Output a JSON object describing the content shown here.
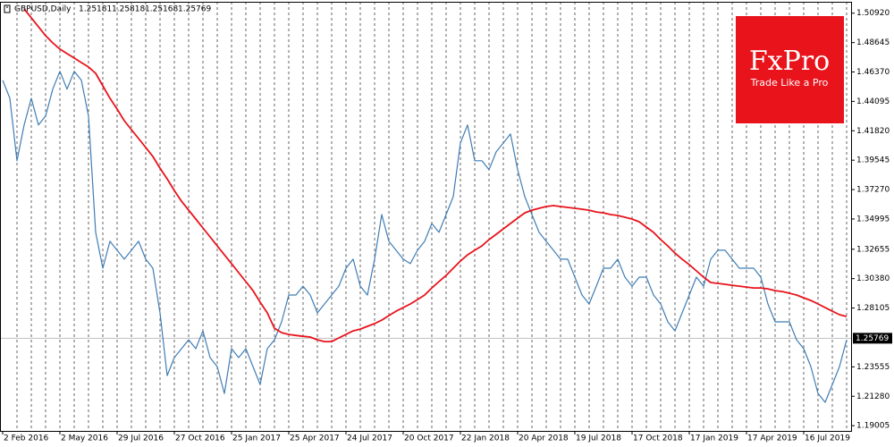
{
  "chart_data": {
    "type": "line",
    "symbol": "GBPUSD,Daily",
    "ohlc": [
      1.25181,
      1.25818,
      1.25168,
      1.25769
    ],
    "logo": {
      "brand": "FxPro",
      "tagline": "Trade Like a Pro"
    },
    "categories": [
      "2 Feb 2016",
      null,
      null,
      null,
      null,
      null,
      null,
      null,
      "2 May 2016",
      null,
      null,
      null,
      null,
      null,
      null,
      null,
      "29 Jul 2016",
      null,
      null,
      null,
      null,
      null,
      null,
      null,
      "27 Oct 2016",
      null,
      null,
      null,
      null,
      null,
      null,
      null,
      "25 Jan 2017",
      null,
      null,
      null,
      null,
      null,
      null,
      null,
      "25 Apr 2017",
      null,
      null,
      null,
      null,
      null,
      null,
      null,
      "24 Jul 2017",
      null,
      null,
      null,
      null,
      null,
      null,
      null,
      "20 Oct 2017",
      null,
      null,
      null,
      null,
      null,
      null,
      null,
      "22 Jan 2018",
      null,
      null,
      null,
      null,
      null,
      null,
      null,
      "20 Apr 2018",
      null,
      null,
      null,
      null,
      null,
      null,
      null,
      "19 Jul 2018",
      null,
      null,
      null,
      null,
      null,
      null,
      null,
      "17 Oct 2018",
      null,
      null,
      null,
      null,
      null,
      null,
      null,
      "17 Jan 2019",
      null,
      null,
      null,
      null,
      null,
      null,
      null,
      "17 Apr 2019",
      null,
      null,
      null,
      null,
      null,
      null,
      null,
      "16 Jul 2019",
      null,
      null,
      null,
      null,
      null,
      null
    ],
    "series": [
      {
        "color": "#3f7db5",
        "values": [
          1.4573,
          1.4434,
          1.395,
          1.4227,
          1.4434,
          1.4227,
          1.4296,
          1.4504,
          1.4642,
          1.4504,
          1.4642,
          1.4573,
          1.4296,
          1.3396,
          1.3119,
          1.3327,
          1.3258,
          1.3189,
          1.3258,
          1.3327,
          1.3189,
          1.3119,
          1.2773,
          1.2288,
          1.2427,
          1.2496,
          1.2565,
          1.2496,
          1.2634,
          1.2427,
          1.2357,
          1.215,
          1.2496,
          1.2427,
          1.2496,
          1.2357,
          1.2219,
          1.2496,
          1.2565,
          1.2704,
          1.2911,
          1.2911,
          1.298,
          1.2911,
          1.2773,
          1.2842,
          1.2911,
          1.298,
          1.3119,
          1.3189,
          1.298,
          1.2911,
          1.3189,
          1.3534,
          1.3327,
          1.3258,
          1.3189,
          1.3154,
          1.3258,
          1.3327,
          1.3465,
          1.3396,
          1.3534,
          1.3673,
          1.4088,
          1.4227,
          1.395,
          1.395,
          1.3881,
          1.4019,
          1.4088,
          1.4157,
          1.3881,
          1.3673,
          1.3534,
          1.3396,
          1.3327,
          1.3258,
          1.3189,
          1.3189,
          1.305,
          1.2911,
          1.2842,
          1.298,
          1.3119,
          1.3119,
          1.3189,
          1.305,
          1.298,
          1.305,
          1.305,
          1.2911,
          1.2842,
          1.2704,
          1.2634,
          1.2773,
          1.2911,
          1.305,
          1.298,
          1.3189,
          1.3258,
          1.3258,
          1.3189,
          1.3119,
          1.3119,
          1.3119,
          1.305,
          1.2842,
          1.2704,
          1.2704,
          1.2704,
          1.2565,
          1.2496,
          1.2357,
          1.215,
          1.2081,
          1.2219,
          1.2357,
          1.2565
        ]
      },
      {
        "color": "#e8131b",
        "values": [
          null,
          null,
          null,
          1.5125,
          1.5056,
          1.4987,
          1.4918,
          1.4862,
          1.4814,
          1.4779,
          1.4745,
          1.471,
          1.4676,
          1.4627,
          1.453,
          1.4434,
          1.435,
          1.426,
          1.4191,
          1.4122,
          1.4053,
          1.3983,
          1.3893,
          1.381,
          1.372,
          1.3637,
          1.3568,
          1.3499,
          1.343,
          1.3361,
          1.3291,
          1.3222,
          1.3154,
          1.3084,
          1.3015,
          1.2945,
          1.2856,
          1.2773,
          1.2655,
          1.262,
          1.2606,
          1.2599,
          1.2592,
          1.2586,
          1.2565,
          1.2551,
          1.2551,
          1.2579,
          1.2606,
          1.2634,
          1.2648,
          1.2669,
          1.269,
          1.2717,
          1.2752,
          1.2786,
          1.2814,
          1.2842,
          1.2876,
          1.2911,
          1.2966,
          1.3015,
          1.3063,
          1.3119,
          1.3174,
          1.3222,
          1.3258,
          1.3291,
          1.334,
          1.3381,
          1.3423,
          1.3465,
          1.3506,
          1.3547,
          1.3568,
          1.3582,
          1.3596,
          1.3603,
          1.3596,
          1.3589,
          1.3582,
          1.3575,
          1.3568,
          1.3554,
          1.3547,
          1.3534,
          1.3527,
          1.3513,
          1.3499,
          1.3478,
          1.3437,
          1.3396,
          1.334,
          1.3291,
          1.3236,
          1.3189,
          1.3146,
          1.3098,
          1.305,
          1.3008,
          1.3001,
          1.2994,
          1.2987,
          1.298,
          1.2973,
          1.2966,
          1.2966,
          1.2959,
          1.2945,
          1.2938,
          1.2925,
          1.2911,
          1.289,
          1.2869,
          1.2842,
          1.2814,
          1.2786,
          1.2759,
          1.2745
        ]
      }
    ],
    "ylim": [
      1.186,
      1.518
    ],
    "yticks": [
      {
        "value": 1.5092,
        "label": "1.50920"
      },
      {
        "value": 1.48645,
        "label": "1.48645"
      },
      {
        "value": 1.4637,
        "label": "1.46370"
      },
      {
        "value": 1.44095,
        "label": "1.44095"
      },
      {
        "value": 1.4182,
        "label": "1.41820"
      },
      {
        "value": 1.39545,
        "label": "1.39545"
      },
      {
        "value": 1.3727,
        "label": "1.37270"
      },
      {
        "value": 1.34995,
        "label": "1.34995"
      },
      {
        "value": 1.32655,
        "label": "1.32655"
      },
      {
        "value": 1.3038,
        "label": "1.30380"
      },
      {
        "value": 1.28105,
        "label": "1.28105"
      },
      {
        "value": 1.23555,
        "label": "1.23555"
      },
      {
        "value": 1.2128,
        "label": "1.21280"
      },
      {
        "value": 1.19005,
        "label": "1.19005"
      }
    ],
    "grid": true
  }
}
